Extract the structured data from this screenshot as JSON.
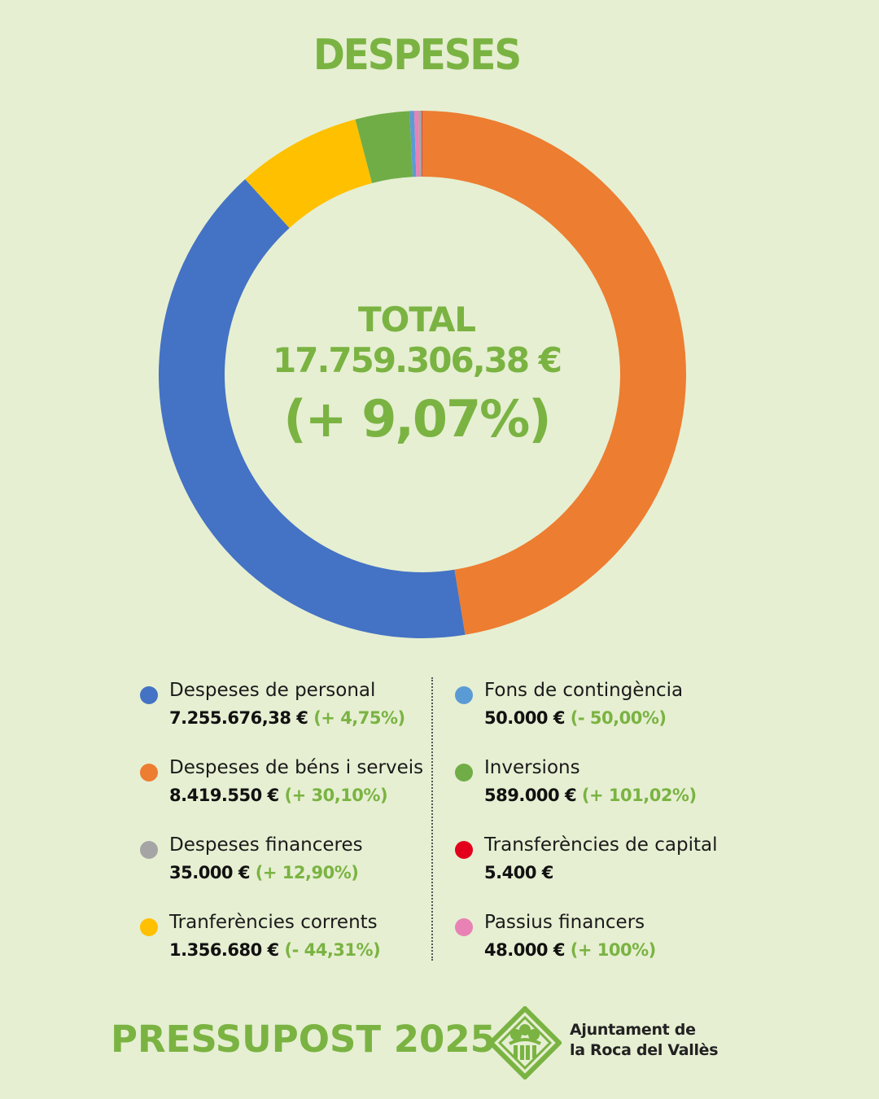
{
  "header": {
    "title": "DESPESES"
  },
  "center": {
    "total_label": "TOTAL",
    "total_value": "17.759.306,38 €",
    "total_change": "(+ 9,07%)"
  },
  "legend": {
    "items": [
      {
        "name": "Despeses de personal",
        "amount": "7.255.676,38 €",
        "change": "(+ 4,75%)",
        "color": "#4472c4"
      },
      {
        "name": "Despeses de béns i serveis",
        "amount": "8.419.550 €",
        "change": "(+ 30,10%)",
        "color": "#ed7d31"
      },
      {
        "name": "Despeses financeres",
        "amount": "35.000 €",
        "change": "(+ 12,90%)",
        "color": "#a5a5a5"
      },
      {
        "name": "Tranferències corrents",
        "amount": "1.356.680 €",
        "change": "(- 44,31%)",
        "color": "#ffc000"
      },
      {
        "name": "Fons de contingència",
        "amount": "50.000 €",
        "change": "(- 50,00%)",
        "color": "#5b9bd5"
      },
      {
        "name": "Inversions",
        "amount": "589.000 €",
        "change": "(+ 101,02%)",
        "color": "#70ad47"
      },
      {
        "name": "Transferències de capital",
        "amount": "5.400 €",
        "change": "",
        "color": "#e3001b"
      },
      {
        "name": "Passius financers",
        "amount": "48.000 €",
        "change": "(+ 100%)",
        "color": "#e882b4"
      }
    ]
  },
  "footer": {
    "title": "PRESSUPOST 2025",
    "org_line1": "Ajuntament de",
    "org_line2": "la Roca del Vallès",
    "logo_icon": "roca-del-valles-logo-icon",
    "brand_color": "#7ab342"
  },
  "chart_data": {
    "type": "pie",
    "style": "donut",
    "title": "DESPESES",
    "slices": [
      {
        "label": "Despeses de béns i serveis",
        "value": 8419550,
        "color": "#ed7d31"
      },
      {
        "label": "Despeses de personal",
        "value": 7255676.38,
        "color": "#4472c4"
      },
      {
        "label": "Tranferències corrents",
        "value": 1356680,
        "color": "#ffc000"
      },
      {
        "label": "Inversions",
        "value": 589000,
        "color": "#70ad47"
      },
      {
        "label": "Fons de contingència",
        "value": 50000,
        "color": "#5b9bd5"
      },
      {
        "label": "Passius financers",
        "value": 48000,
        "color": "#e882b4"
      },
      {
        "label": "Despeses financeres",
        "value": 35000,
        "color": "#a5a5a5"
      },
      {
        "label": "Transferències de capital",
        "value": 5400,
        "color": "#e3001b"
      }
    ],
    "legend_position": "bottom"
  }
}
